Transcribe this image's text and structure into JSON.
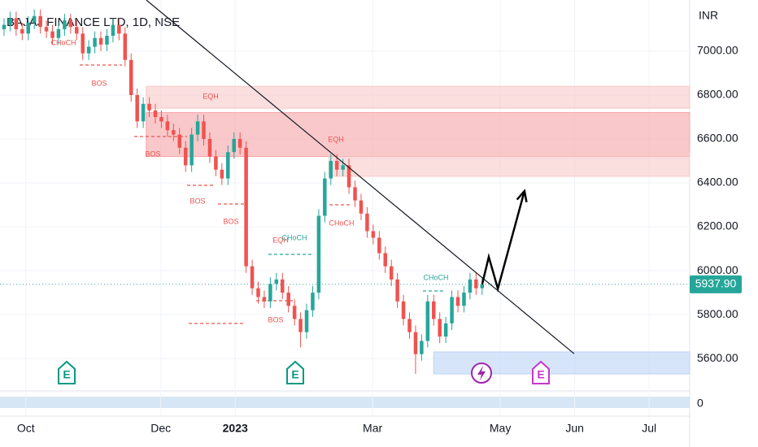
{
  "chart_data": {
    "type": "candlestick",
    "title": "BAJAJ FINANCE LTD, 1D, NSE",
    "currency": "INR",
    "x": [
      0,
      1,
      2,
      3,
      4,
      5,
      6,
      7,
      8,
      9,
      10,
      11,
      12,
      13,
      14,
      15,
      16,
      17,
      18,
      19,
      20,
      21,
      22,
      23,
      24,
      25,
      26,
      27,
      28,
      29,
      30,
      31,
      32,
      33,
      34,
      35,
      36,
      37,
      38,
      39,
      40,
      41,
      42,
      43,
      44,
      45,
      46,
      47,
      48,
      49,
      50,
      51,
      52,
      53,
      54,
      55,
      56,
      57,
      58,
      59,
      60,
      61,
      62,
      63,
      64,
      65,
      66,
      67,
      68,
      69,
      70,
      71,
      72,
      73,
      74,
      75,
      76,
      77,
      78,
      79
    ],
    "open": [
      7100,
      7120,
      7150,
      7100,
      7080,
      7130,
      7160,
      7110,
      7090,
      7060,
      7100,
      7140,
      7110,
      7080,
      6990,
      7020,
      7060,
      7030,
      7070,
      7120,
      7080,
      6960,
      6800,
      6680,
      6760,
      6730,
      6700,
      6680,
      6640,
      6620,
      6560,
      6480,
      6620,
      6680,
      6600,
      6520,
      6460,
      6420,
      6540,
      6600,
      6560,
      6020,
      5920,
      5880,
      5860,
      5940,
      5960,
      5900,
      5840,
      5780,
      5720,
      5820,
      5900,
      6250,
      6420,
      6500,
      6460,
      6480,
      6380,
      6320,
      6260,
      6180,
      6150,
      6080,
      6020,
      5960,
      5860,
      5780,
      5720,
      5620,
      5680,
      5860,
      5780,
      5700,
      5760,
      5880,
      5840,
      5900,
      5960,
      5920
    ],
    "high": [
      7150,
      7180,
      7180,
      7130,
      7160,
      7190,
      7190,
      7140,
      7120,
      7130,
      7170,
      7170,
      7140,
      7110,
      7050,
      7090,
      7090,
      7100,
      7150,
      7150,
      7110,
      6990,
      6830,
      6790,
      6790,
      6760,
      6730,
      6710,
      6670,
      6650,
      6590,
      6650,
      6710,
      6710,
      6630,
      6550,
      6490,
      6570,
      6630,
      6630,
      6590,
      6050,
      5950,
      5910,
      5970,
      5990,
      5990,
      5930,
      5870,
      5810,
      5850,
      5930,
      6280,
      6450,
      6530,
      6530,
      6510,
      6510,
      6410,
      6350,
      6290,
      6210,
      6180,
      6110,
      6050,
      5990,
      5890,
      5810,
      5750,
      5710,
      5890,
      5890,
      5810,
      5790,
      5910,
      5910,
      5930,
      5990,
      5990,
      5970
    ],
    "low": [
      7070,
      7090,
      7070,
      7050,
      7050,
      7100,
      7080,
      7060,
      7030,
      7030,
      7070,
      7080,
      7050,
      6960,
      6960,
      6990,
      7000,
      7000,
      7040,
      7050,
      6930,
      6770,
      6650,
      6650,
      6700,
      6670,
      6650,
      6610,
      6590,
      6530,
      6450,
      6450,
      6590,
      6570,
      6490,
      6430,
      6390,
      6390,
      6510,
      6530,
      5990,
      5890,
      5850,
      5830,
      5830,
      5910,
      5870,
      5810,
      5750,
      5650,
      5690,
      5790,
      5870,
      6220,
      6390,
      6430,
      6430,
      6350,
      6290,
      6230,
      6150,
      6120,
      6050,
      5990,
      5930,
      5830,
      5750,
      5690,
      5530,
      5590,
      5650,
      5750,
      5670,
      5670,
      5730,
      5810,
      5810,
      5870,
      5890,
      5890
    ],
    "close": [
      7120,
      7150,
      7100,
      7080,
      7130,
      7160,
      7110,
      7090,
      7060,
      7100,
      7140,
      7110,
      7080,
      6990,
      7020,
      7060,
      7030,
      7070,
      7120,
      7080,
      6960,
      6800,
      6680,
      6760,
      6730,
      6700,
      6680,
      6640,
      6620,
      6560,
      6480,
      6620,
      6680,
      6600,
      6520,
      6460,
      6420,
      6540,
      6600,
      6560,
      6020,
      5920,
      5880,
      5860,
      5940,
      5960,
      5900,
      5840,
      5780,
      5720,
      5820,
      5900,
      6250,
      6420,
      6500,
      6460,
      6480,
      6380,
      6320,
      6260,
      6180,
      6150,
      6080,
      6020,
      5960,
      5860,
      5780,
      5720,
      5620,
      5680,
      5860,
      5780,
      5700,
      5760,
      5880,
      5840,
      5900,
      5960,
      5920,
      5937.9
    ],
    "last_price": 5937.9,
    "value_labels": {
      "last_price": "5937.90"
    },
    "up_color": "#26a69a",
    "down_color": "#ef5350",
    "xlim": [
      -0.67,
      113.3
    ],
    "xticks": [
      {
        "value": 3.6,
        "label": "Oct"
      },
      {
        "value": 25.9,
        "label": "Dec"
      },
      {
        "value": 38.2,
        "label": "2023"
      },
      {
        "value": 60.9,
        "label": "Mar"
      },
      {
        "value": 82,
        "label": "May"
      },
      {
        "value": 94.3,
        "label": "Jun"
      },
      {
        "value": 106.6,
        "label": "Jul"
      }
    ],
    "ylim": [
      5456,
      7233
    ],
    "yticks": [
      {
        "value": 5600,
        "label": "5600.00"
      },
      {
        "value": 5800,
        "label": "5800.00"
      },
      {
        "value": 6000,
        "label": "6000.00"
      },
      {
        "value": 6200,
        "label": "6200.00"
      },
      {
        "value": 6400,
        "label": "6400.00"
      },
      {
        "value": 6600,
        "label": "6600.00"
      },
      {
        "value": 6800,
        "label": "6800.00"
      },
      {
        "value": 7000,
        "label": "7000.00"
      }
    ],
    "volume_ticks": [
      0
    ],
    "grid": true,
    "zones": [
      {
        "x0": 23.5,
        "top": 6840,
        "bottom": 6740,
        "color": "#f8c8c8"
      },
      {
        "x0": 23.5,
        "top": 6720,
        "bottom": 6520,
        "color": "#f5a3a6"
      },
      {
        "x0": 53.7,
        "top": 6540,
        "bottom": 6430,
        "color": "#f8c8c8"
      },
      {
        "x0": 71,
        "top": 5630,
        "bottom": 5530,
        "color": "#bcd3f7"
      }
    ],
    "trendline": {
      "x": [
        23.5,
        94.2
      ],
      "y": [
        7233,
        5622
      ]
    },
    "projection": {
      "x": [
        79,
        80.1,
        81.6,
        86
      ],
      "y": [
        5937,
        6063,
        5918,
        6363
      ]
    },
    "annotations": [
      "CHoCH",
      "BOS",
      "EQH",
      "BOS",
      "BOS",
      "BOS",
      "EQH",
      "CHoCH",
      "EQH",
      "CHoCH",
      "BOS",
      "CHoCH"
    ],
    "events": [
      "E",
      "E",
      "E"
    ]
  }
}
